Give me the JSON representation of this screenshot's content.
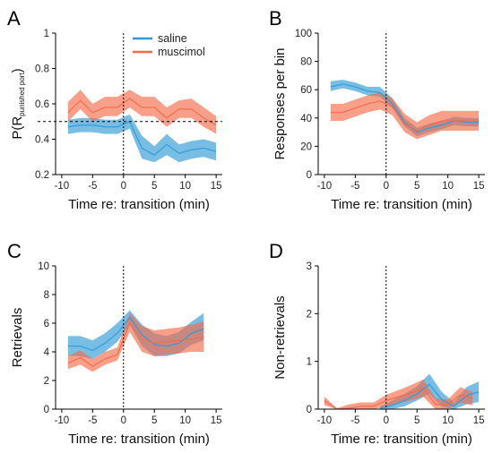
{
  "colors": {
    "saline": "#2f9bd6",
    "muscimol": "#f26b4a"
  },
  "legend": {
    "items": [
      "saline",
      "muscimol"
    ]
  },
  "chart_data": [
    {
      "panel": "A",
      "type": "line",
      "xlabel": "Time re: transition (min)",
      "ylabel": {
        "base": "P(R",
        "sub": "punished port",
        "close": ")"
      },
      "xlim": [
        -11,
        16
      ],
      "ylim": [
        0.2,
        1.0
      ],
      "xticks": [
        -10,
        -5,
        0,
        5,
        10,
        15
      ],
      "yticks": [
        0.2,
        0.4,
        0.6,
        0.8,
        1
      ],
      "ytick_labels": [
        "0.2",
        "0.4",
        "0.6",
        "0.8",
        "1"
      ],
      "vline_x": 0,
      "hline_y": 0.5,
      "series": [
        {
          "name": "saline",
          "x": [
            -9,
            -7,
            -5,
            -3,
            -1,
            1,
            3,
            5,
            7,
            9,
            11,
            13,
            15
          ],
          "mean": [
            0.47,
            0.48,
            0.48,
            0.47,
            0.47,
            0.5,
            0.35,
            0.31,
            0.37,
            0.32,
            0.34,
            0.35,
            0.33
          ],
          "lo": [
            0.43,
            0.44,
            0.44,
            0.43,
            0.43,
            0.46,
            0.29,
            0.27,
            0.31,
            0.27,
            0.29,
            0.3,
            0.28
          ],
          "hi": [
            0.51,
            0.52,
            0.52,
            0.51,
            0.51,
            0.54,
            0.42,
            0.36,
            0.43,
            0.37,
            0.39,
            0.4,
            0.38
          ]
        },
        {
          "name": "muscimol",
          "x": [
            -9,
            -7,
            -5,
            -3,
            -1,
            1,
            3,
            5,
            7,
            9,
            11,
            13,
            15
          ],
          "mean": [
            0.55,
            0.62,
            0.55,
            0.58,
            0.58,
            0.63,
            0.58,
            0.58,
            0.52,
            0.57,
            0.57,
            0.52,
            0.48
          ],
          "lo": [
            0.5,
            0.57,
            0.5,
            0.53,
            0.53,
            0.58,
            0.53,
            0.53,
            0.47,
            0.52,
            0.52,
            0.47,
            0.43
          ],
          "hi": [
            0.61,
            0.68,
            0.6,
            0.64,
            0.64,
            0.68,
            0.64,
            0.64,
            0.58,
            0.62,
            0.63,
            0.58,
            0.53
          ]
        }
      ]
    },
    {
      "panel": "B",
      "type": "line",
      "xlabel": "Time re: transition (min)",
      "ylabel": "Responses per bin",
      "xlim": [
        -11,
        16
      ],
      "ylim": [
        0,
        100
      ],
      "xticks": [
        -10,
        -5,
        0,
        5,
        10,
        15
      ],
      "yticks": [
        0,
        20,
        40,
        60,
        80,
        100
      ],
      "ytick_labels": [
        "0",
        "20",
        "40",
        "60",
        "80",
        "100"
      ],
      "vline_x": 0,
      "series": [
        {
          "name": "saline",
          "x": [
            -9,
            -7,
            -5,
            -3,
            -1,
            1,
            3,
            5,
            7,
            9,
            11,
            13,
            15
          ],
          "mean": [
            62,
            64,
            62,
            59,
            58,
            50,
            37,
            30,
            33,
            35,
            38,
            37,
            37
          ],
          "lo": [
            59,
            61,
            59,
            56,
            55,
            47,
            34,
            27,
            30,
            32,
            35,
            34,
            34
          ],
          "hi": [
            66,
            67,
            65,
            62,
            62,
            54,
            40,
            33,
            36,
            38,
            41,
            40,
            40
          ]
        },
        {
          "name": "muscimol",
          "x": [
            -9,
            -7,
            -5,
            -3,
            -1,
            1,
            3,
            5,
            7,
            9,
            11,
            13,
            15
          ],
          "mean": [
            44,
            44,
            47,
            50,
            52,
            48,
            36,
            31,
            35,
            38,
            38,
            38,
            38
          ],
          "lo": [
            38,
            38,
            41,
            44,
            46,
            42,
            30,
            25,
            28,
            31,
            31,
            31,
            31
          ],
          "hi": [
            50,
            50,
            53,
            56,
            58,
            54,
            43,
            37,
            42,
            45,
            45,
            45,
            45
          ]
        }
      ]
    },
    {
      "panel": "C",
      "type": "line",
      "xlabel": "Time re: transition (min)",
      "ylabel": "Retrievals",
      "xlim": [
        -11,
        16
      ],
      "ylim": [
        0,
        10
      ],
      "xticks": [
        -10,
        -5,
        0,
        5,
        10,
        15
      ],
      "yticks": [
        0,
        2,
        4,
        6,
        8,
        10
      ],
      "ytick_labels": [
        "0",
        "2",
        "4",
        "6",
        "8",
        "10"
      ],
      "vline_x": 0,
      "series": [
        {
          "name": "saline",
          "x": [
            -9,
            -7,
            -5,
            -3,
            -1,
            1,
            3,
            5,
            7,
            9,
            11,
            13
          ],
          "mean": [
            4.4,
            4.4,
            4.1,
            4.6,
            5.3,
            6.4,
            5.2,
            4.5,
            4.4,
            4.6,
            5.3,
            5.6
          ],
          "lo": [
            3.7,
            3.7,
            3.5,
            4.0,
            4.7,
            5.9,
            4.4,
            3.7,
            3.7,
            3.9,
            4.5,
            4.8
          ],
          "hi": [
            5.1,
            5.1,
            4.8,
            5.3,
            6.0,
            6.9,
            5.9,
            5.3,
            5.1,
            5.4,
            6.1,
            6.7
          ]
        },
        {
          "name": "muscimol",
          "x": [
            -9,
            -7,
            -5,
            -3,
            -1,
            1,
            3,
            5,
            7,
            9,
            11,
            13
          ],
          "mean": [
            3.2,
            3.6,
            3.0,
            3.5,
            3.8,
            6.0,
            4.9,
            4.6,
            4.7,
            4.8,
            4.9,
            5.0
          ],
          "lo": [
            2.8,
            3.1,
            2.6,
            3.1,
            3.4,
            5.4,
            4.0,
            3.7,
            3.8,
            3.9,
            4.0,
            4.0
          ],
          "hi": [
            3.7,
            4.1,
            3.5,
            4.0,
            4.3,
            6.7,
            5.8,
            5.5,
            5.6,
            5.7,
            5.9,
            6.1
          ]
        }
      ]
    },
    {
      "panel": "D",
      "type": "line",
      "xlabel": "Time re: transition (min)",
      "ylabel": "Non-retrievals",
      "xlim": [
        -11,
        16
      ],
      "ylim": [
        0,
        3
      ],
      "xticks": [
        -10,
        -5,
        0,
        5,
        10,
        15
      ],
      "yticks": [
        0,
        1,
        2,
        3
      ],
      "ytick_labels": [
        "0",
        "1",
        "2",
        "3"
      ],
      "vline_x": 0,
      "series": [
        {
          "name": "saline",
          "x": [
            -1,
            1,
            3,
            5,
            7,
            9,
            11,
            13,
            15
          ],
          "mean": [
            0.02,
            0.08,
            0.18,
            0.32,
            0.52,
            0.2,
            0.06,
            0.28,
            0.36
          ],
          "lo": [
            0.0,
            0.0,
            0.06,
            0.18,
            0.32,
            0.05,
            0.0,
            0.1,
            0.15
          ],
          "hi": [
            0.05,
            0.18,
            0.32,
            0.48,
            0.74,
            0.36,
            0.14,
            0.46,
            0.58
          ]
        },
        {
          "name": "muscimol",
          "x": [
            -10,
            -8,
            -6,
            -4,
            -2,
            0,
            2,
            4,
            6,
            8,
            10,
            12,
            14
          ],
          "mean": [
            0.18,
            0.0,
            0.02,
            0.06,
            0.06,
            0.18,
            0.26,
            0.34,
            0.44,
            0.1,
            0.1,
            0.3,
            0.22
          ],
          "lo": [
            0.08,
            0.0,
            0.0,
            0.0,
            0.0,
            0.06,
            0.12,
            0.18,
            0.26,
            0.0,
            0.0,
            0.14,
            0.08
          ],
          "hi": [
            0.26,
            0.02,
            0.1,
            0.14,
            0.14,
            0.3,
            0.4,
            0.5,
            0.62,
            0.22,
            0.2,
            0.46,
            0.36
          ]
        }
      ]
    }
  ]
}
